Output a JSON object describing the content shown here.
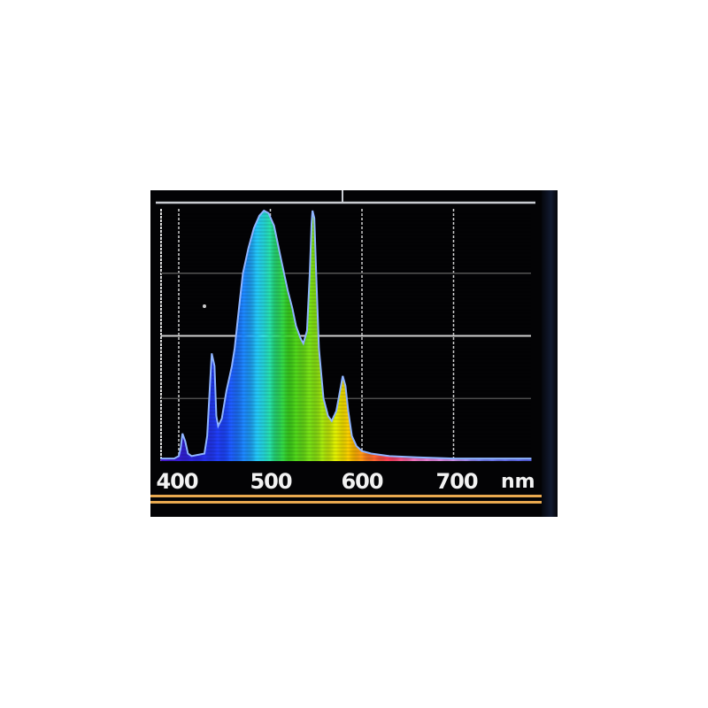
{
  "chart_data": {
    "type": "area",
    "title": "",
    "xlabel": "nm",
    "ylabel": "",
    "xlim": [
      380,
      785
    ],
    "ylim": [
      0,
      100
    ],
    "x_ticks": [
      400,
      500,
      600,
      700
    ],
    "x_tick_labels": [
      "400",
      "500",
      "600",
      "700"
    ],
    "grid": true,
    "fill": "wavelength-colored spectrum",
    "outline_color": "#8fb4ff",
    "background": "#030305",
    "x": [
      380,
      395,
      400,
      402,
      404,
      407,
      410,
      414,
      428,
      431,
      434,
      436,
      439,
      441,
      443,
      447,
      452,
      458,
      461,
      466,
      470,
      476,
      482,
      488,
      493,
      498,
      504,
      512,
      519,
      524,
      528,
      533,
      536,
      540,
      543,
      545,
      546,
      548,
      550,
      553,
      558,
      563,
      567,
      572,
      576,
      579,
      582,
      585,
      589,
      594,
      600,
      610,
      630,
      660,
      700,
      740,
      785
    ],
    "y": [
      1,
      1,
      2,
      5,
      11,
      8,
      3,
      2,
      3,
      10,
      30,
      43,
      38,
      18,
      14,
      17,
      28,
      38,
      45,
      62,
      75,
      85,
      93,
      98,
      100,
      99,
      94,
      80,
      68,
      61,
      54,
      49,
      47,
      52,
      75,
      95,
      100,
      97,
      75,
      45,
      25,
      18,
      16,
      20,
      28,
      34,
      30,
      20,
      10,
      6,
      4,
      3,
      2,
      1.5,
      1,
      1,
      1
    ]
  },
  "axis_unit_label": "nm"
}
